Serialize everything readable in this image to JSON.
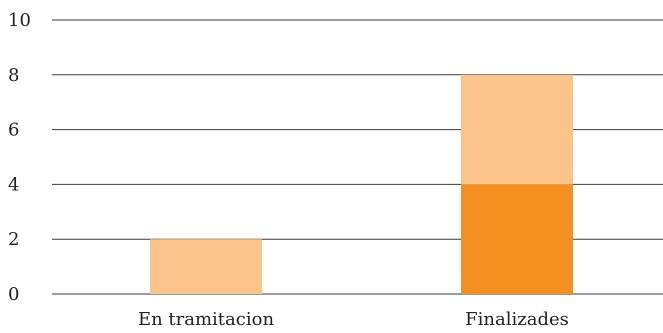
{
  "chart_data": {
    "type": "bar",
    "stacked": true,
    "categories": [
      "En tramitacion",
      "Finalizades"
    ],
    "series": [
      {
        "values": [
          0,
          4
        ],
        "color": "#f39020"
      },
      {
        "values": [
          2,
          4
        ],
        "color": "#fbc48a"
      }
    ],
    "ylim": [
      0,
      10
    ],
    "yticks": [
      0,
      2,
      4,
      6,
      8,
      10
    ],
    "grid": true,
    "legend": "none"
  }
}
